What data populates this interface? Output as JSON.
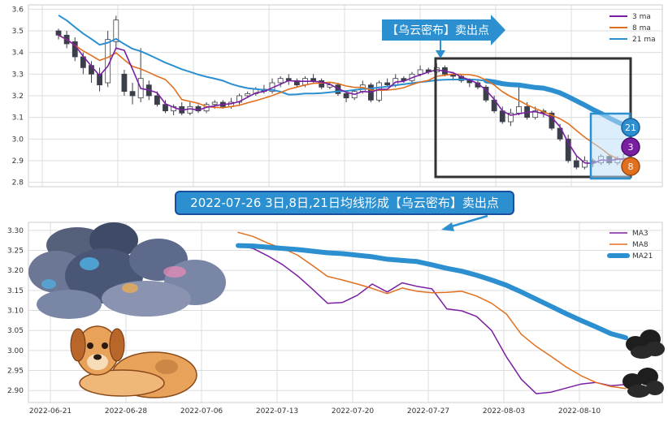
{
  "colors": {
    "ma3": "#7b1fa2",
    "ma8": "#e07020",
    "ma21": "#2b8fd0",
    "candle_up": "#ffffff",
    "candle_down": "#3b3f4a",
    "grid": "#dddddd",
    "annotation_bg": "#2b8fd0",
    "box": "#333333"
  },
  "top_annotation": "【乌云密布】卖出点",
  "bottom_annotation": "2022-07-26 3日,8日,21日均线形成【乌云密布】卖出点",
  "badges": {
    "ma21": "21",
    "ma3": "3",
    "ma8": "8"
  },
  "illustrations": [
    "storm-cloud",
    "dog",
    "small-dark-cloud",
    "small-dark-cloud"
  ],
  "chart_data": [
    {
      "type": "candlestick",
      "ylim": [
        2.78,
        3.62
      ],
      "yticks": [
        "2.8",
        "2.9",
        "3.0",
        "3.1",
        "3.2",
        "3.3",
        "3.4",
        "3.5",
        "3.6"
      ],
      "legend": [
        "3 ma",
        "8 ma",
        "21 ma"
      ],
      "legend_position": "top-right",
      "grid": true,
      "candles": [
        [
          3.5,
          3.48,
          3.51,
          3.46
        ],
        [
          3.48,
          3.44,
          3.5,
          3.42
        ],
        [
          3.45,
          3.38,
          3.47,
          3.36
        ],
        [
          3.38,
          3.33,
          3.4,
          3.3
        ],
        [
          3.34,
          3.3,
          3.36,
          3.26
        ],
        [
          3.3,
          3.25,
          3.33,
          3.22
        ],
        [
          3.26,
          3.46,
          3.5,
          3.24
        ],
        [
          3.45,
          3.55,
          3.57,
          3.42
        ],
        [
          3.3,
          3.22,
          3.32,
          3.2
        ],
        [
          3.22,
          3.2,
          3.26,
          3.16
        ],
        [
          3.19,
          3.28,
          3.42,
          3.17
        ],
        [
          3.25,
          3.2,
          3.27,
          3.18
        ],
        [
          3.2,
          3.16,
          3.22,
          3.15
        ],
        [
          3.16,
          3.13,
          3.18,
          3.12
        ],
        [
          3.13,
          3.15,
          3.16,
          3.11
        ],
        [
          3.15,
          3.12,
          3.17,
          3.11
        ],
        [
          3.12,
          3.15,
          3.17,
          3.11
        ],
        [
          3.15,
          3.13,
          3.16,
          3.12
        ],
        [
          3.13,
          3.16,
          3.17,
          3.12
        ],
        [
          3.16,
          3.17,
          3.18,
          3.14
        ],
        [
          3.17,
          3.15,
          3.18,
          3.14
        ],
        [
          3.15,
          3.17,
          3.19,
          3.14
        ],
        [
          3.17,
          3.2,
          3.21,
          3.16
        ],
        [
          3.2,
          3.21,
          3.22,
          3.19
        ],
        [
          3.21,
          3.23,
          3.24,
          3.2
        ],
        [
          3.23,
          3.22,
          3.25,
          3.21
        ],
        [
          3.22,
          3.26,
          3.28,
          3.21
        ],
        [
          3.26,
          3.28,
          3.29,
          3.24
        ],
        [
          3.28,
          3.27,
          3.3,
          3.25
        ],
        [
          3.27,
          3.25,
          3.28,
          3.24
        ],
        [
          3.25,
          3.28,
          3.29,
          3.24
        ],
        [
          3.28,
          3.27,
          3.3,
          3.26
        ],
        [
          3.27,
          3.24,
          3.28,
          3.23
        ],
        [
          3.24,
          3.25,
          3.26,
          3.23
        ],
        [
          3.25,
          3.21,
          3.26,
          3.2
        ],
        [
          3.21,
          3.19,
          3.22,
          3.17
        ],
        [
          3.19,
          3.22,
          3.23,
          3.18
        ],
        [
          3.22,
          3.25,
          3.27,
          3.21
        ],
        [
          3.25,
          3.18,
          3.26,
          3.17
        ],
        [
          3.18,
          3.26,
          3.27,
          3.17
        ],
        [
          3.26,
          3.25,
          3.28,
          3.24
        ],
        [
          3.25,
          3.28,
          3.3,
          3.24
        ],
        [
          3.28,
          3.27,
          3.29,
          3.26
        ],
        [
          3.27,
          3.3,
          3.31,
          3.26
        ],
        [
          3.3,
          3.32,
          3.34,
          3.29
        ],
        [
          3.32,
          3.31,
          3.33,
          3.3
        ],
        [
          3.31,
          3.33,
          3.35,
          3.3
        ],
        [
          3.33,
          3.3,
          3.34,
          3.29
        ],
        [
          3.3,
          3.29,
          3.31,
          3.27
        ],
        [
          3.29,
          3.27,
          3.3,
          3.26
        ],
        [
          3.27,
          3.26,
          3.28,
          3.24
        ],
        [
          3.26,
          3.24,
          3.27,
          3.23
        ],
        [
          3.24,
          3.18,
          3.25,
          3.17
        ],
        [
          3.18,
          3.13,
          3.2,
          3.12
        ],
        [
          3.13,
          3.08,
          3.15,
          3.07
        ],
        [
          3.08,
          3.12,
          3.14,
          3.06
        ],
        [
          3.12,
          3.15,
          3.26,
          3.11
        ],
        [
          3.15,
          3.1,
          3.17,
          3.09
        ],
        [
          3.1,
          3.13,
          3.15,
          3.09
        ],
        [
          3.13,
          3.12,
          3.14,
          3.1
        ],
        [
          3.12,
          3.05,
          3.13,
          3.04
        ],
        [
          3.05,
          3.0,
          3.07,
          2.99
        ],
        [
          3.0,
          2.9,
          3.02,
          2.89
        ],
        [
          2.9,
          2.87,
          2.92,
          2.86
        ],
        [
          2.87,
          2.9,
          2.92,
          2.86
        ],
        [
          2.9,
          2.89,
          2.91,
          2.87
        ],
        [
          2.89,
          2.92,
          2.93,
          2.88
        ],
        [
          2.92,
          2.89,
          2.93,
          2.88
        ],
        [
          2.89,
          2.91,
          2.92,
          2.88
        ],
        [
          2.91,
          2.93,
          2.94,
          2.9
        ]
      ]
    },
    {
      "type": "line",
      "xlabels": [
        "2022-06-21",
        "2022-06-28",
        "2022-07-06",
        "2022-07-13",
        "2022-07-20",
        "2022-07-27",
        "2022-08-03",
        "2022-08-10"
      ],
      "ylim": [
        2.87,
        3.32
      ],
      "yticks": [
        "2.90",
        "2.95",
        "3.00",
        "3.05",
        "3.10",
        "3.15",
        "3.20",
        "3.25",
        "3.30"
      ],
      "legend": [
        "MA3",
        "MA8",
        "MA21"
      ],
      "legend_position": "top-right",
      "grid": true,
      "series": [
        {
          "name": "MA3",
          "values": [
            3.262,
            3.255,
            3.236,
            3.214,
            3.186,
            3.153,
            3.118,
            3.12,
            3.138,
            3.166,
            3.146,
            3.169,
            3.16,
            3.154,
            3.104,
            3.099,
            3.085,
            3.05,
            2.984,
            2.928,
            2.892,
            2.896,
            2.906,
            2.916,
            2.92,
            2.912,
            2.915
          ]
        },
        {
          "name": "MA8",
          "values": [
            3.295,
            3.285,
            3.268,
            3.255,
            3.238,
            3.212,
            3.185,
            3.176,
            3.166,
            3.155,
            3.142,
            3.156,
            3.148,
            3.144,
            3.145,
            3.148,
            3.136,
            3.118,
            3.091,
            3.04,
            3.01,
            2.985,
            2.959,
            2.937,
            2.92,
            2.91,
            2.905
          ]
        },
        {
          "name": "MA21",
          "values": [
            3.262,
            3.261,
            3.258,
            3.255,
            3.252,
            3.248,
            3.244,
            3.242,
            3.238,
            3.234,
            3.228,
            3.225,
            3.222,
            3.214,
            3.205,
            3.198,
            3.188,
            3.176,
            3.163,
            3.146,
            3.128,
            3.11,
            3.092,
            3.075,
            3.059,
            3.042,
            3.032
          ]
        }
      ]
    }
  ]
}
